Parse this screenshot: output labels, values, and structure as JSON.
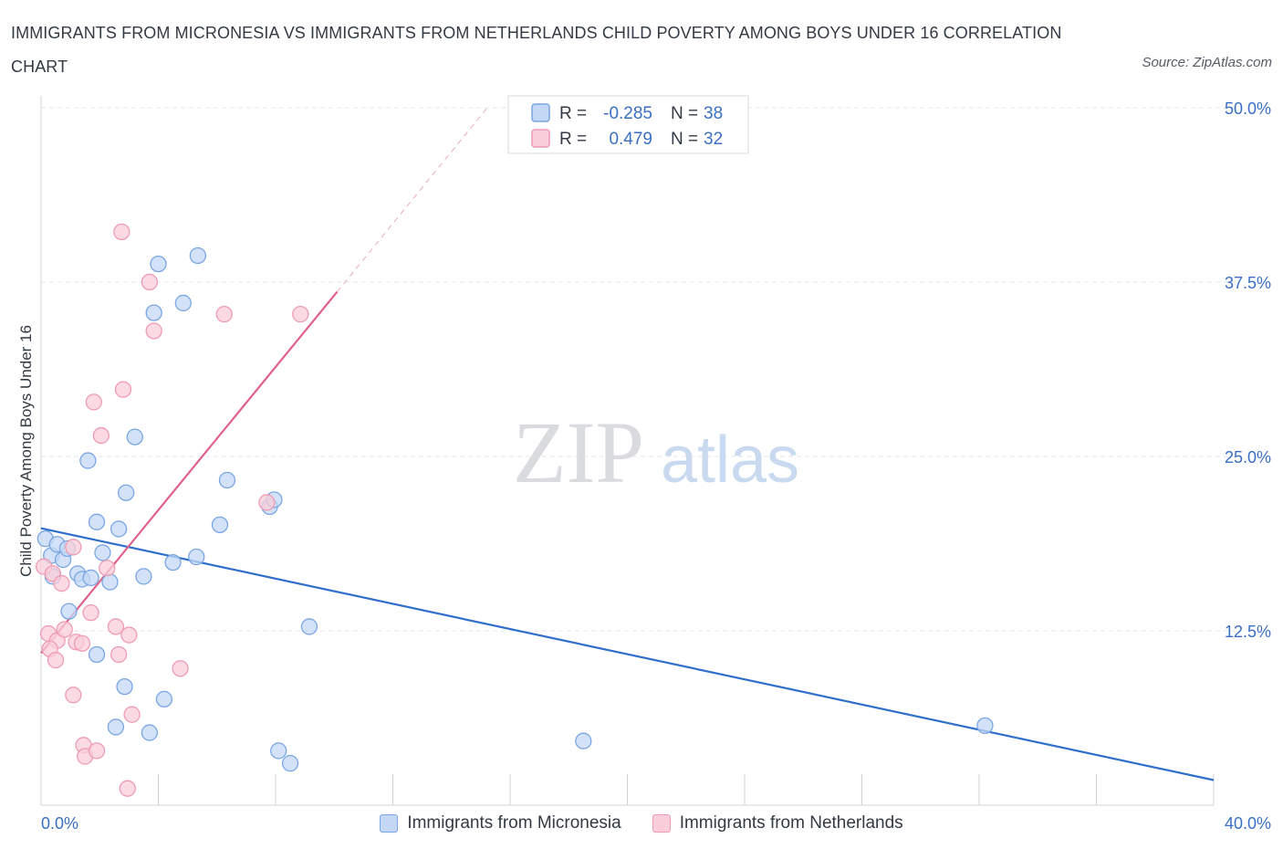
{
  "title": "IMMIGRANTS FROM MICRONESIA VS IMMIGRANTS FROM NETHERLANDS CHILD POVERTY AMONG BOYS UNDER 16 CORRELATION CHART",
  "source": "Source: ZipAtlas.com",
  "watermark": {
    "zip": "ZIP",
    "atlas": "atlas"
  },
  "legend_top": [
    {
      "r_label": "R =",
      "r_value": "-0.285",
      "n_label": "N =",
      "n_value": "38"
    },
    {
      "r_label": "R =",
      "r_value": "0.479",
      "n_label": "N =",
      "n_value": "32"
    }
  ],
  "legend_bottom": [
    "Immigrants from Micronesia",
    "Immigrants from Netherlands"
  ],
  "colors": {
    "micronesia_fill": "#c4d8f5",
    "micronesia_stroke": "#7aa6e3",
    "micronesia_line": "#2f6fcc",
    "netherlands_fill": "#f9cdd9",
    "netherlands_stroke": "#ee9bb3",
    "netherlands_line": "#e0608a",
    "tick_label": "#3a6fc4",
    "grid": "#e1e4e8"
  },
  "chart_data": {
    "type": "scatter",
    "title": "IMMIGRANTS FROM MICRONESIA VS IMMIGRANTS FROM NETHERLANDS CHILD POVERTY AMONG BOYS UNDER 16 CORRELATION CHART",
    "xlabel": "",
    "ylabel": "Child Poverty Among Boys Under 16",
    "xlim": [
      0,
      40
    ],
    "ylim": [
      0,
      50
    ],
    "x_tick_labels": [
      "0.0%",
      "40.0%"
    ],
    "y_ticks": [
      12.5,
      25.0,
      37.5,
      50.0
    ],
    "y_tick_labels": [
      "12.5%",
      "25.0%",
      "37.5%",
      "50.0%"
    ],
    "grid": true,
    "legend_placement": "top-center",
    "series": [
      {
        "name": "Immigrants from Micronesia",
        "points": [
          [
            0.15,
            19.1
          ],
          [
            0.35,
            17.9
          ],
          [
            0.55,
            18.7
          ],
          [
            0.75,
            17.6
          ],
          [
            0.9,
            18.4
          ],
          [
            0.4,
            16.4
          ],
          [
            1.25,
            16.6
          ],
          [
            1.4,
            16.2
          ],
          [
            1.7,
            16.3
          ],
          [
            2.1,
            18.1
          ],
          [
            2.35,
            16.0
          ],
          [
            1.9,
            20.3
          ],
          [
            2.65,
            19.8
          ],
          [
            0.95,
            13.9
          ],
          [
            2.9,
            22.4
          ],
          [
            1.6,
            24.7
          ],
          [
            3.2,
            26.4
          ],
          [
            3.5,
            16.4
          ],
          [
            3.85,
            35.3
          ],
          [
            4.0,
            38.8
          ],
          [
            4.5,
            17.4
          ],
          [
            4.85,
            36.0
          ],
          [
            5.3,
            17.8
          ],
          [
            5.35,
            39.4
          ],
          [
            6.1,
            20.1
          ],
          [
            6.35,
            23.3
          ],
          [
            7.8,
            21.4
          ],
          [
            7.95,
            21.9
          ],
          [
            9.15,
            12.8
          ],
          [
            1.9,
            10.8
          ],
          [
            2.85,
            8.5
          ],
          [
            4.2,
            7.6
          ],
          [
            2.55,
            5.6
          ],
          [
            3.7,
            5.2
          ],
          [
            8.1,
            3.9
          ],
          [
            8.5,
            3.0
          ],
          [
            18.5,
            4.6
          ],
          [
            32.2,
            5.7
          ]
        ]
      },
      {
        "name": "Immigrants from Netherlands",
        "points": [
          [
            0.1,
            17.1
          ],
          [
            0.4,
            16.6
          ],
          [
            0.7,
            15.9
          ],
          [
            1.1,
            18.5
          ],
          [
            0.25,
            12.3
          ],
          [
            0.55,
            11.8
          ],
          [
            0.8,
            12.6
          ],
          [
            0.3,
            11.2
          ],
          [
            0.5,
            10.4
          ],
          [
            1.2,
            11.7
          ],
          [
            1.4,
            11.6
          ],
          [
            1.7,
            13.8
          ],
          [
            2.25,
            17.0
          ],
          [
            2.55,
            12.8
          ],
          [
            3.0,
            12.2
          ],
          [
            2.65,
            10.8
          ],
          [
            1.8,
            28.9
          ],
          [
            2.05,
            26.5
          ],
          [
            2.75,
            41.1
          ],
          [
            2.8,
            29.8
          ],
          [
            3.7,
            37.5
          ],
          [
            3.85,
            34.0
          ],
          [
            4.75,
            9.8
          ],
          [
            6.25,
            35.2
          ],
          [
            7.7,
            21.7
          ],
          [
            8.85,
            35.2
          ],
          [
            1.1,
            7.9
          ],
          [
            3.1,
            6.5
          ],
          [
            1.45,
            4.3
          ],
          [
            1.5,
            3.5
          ],
          [
            1.9,
            3.9
          ],
          [
            2.95,
            1.2
          ]
        ]
      }
    ],
    "trend_lines": [
      {
        "name": "Immigrants from Micronesia",
        "x": [
          0,
          40
        ],
        "y": [
          19.85,
          1.8
        ]
      },
      {
        "name": "Immigrants from Netherlands",
        "x": [
          0,
          10.1
        ],
        "y": [
          10.9,
          36.8
        ],
        "extension_x": [
          10.1,
          15.3
        ],
        "extension_y": [
          36.8,
          50.2
        ]
      }
    ]
  }
}
